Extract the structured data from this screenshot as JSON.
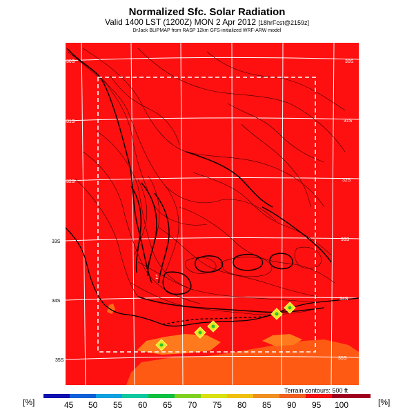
{
  "header": {
    "title": "Normalized Sfc. Solar Radiation",
    "valid_main": "Valid 1400 LST (1200Z) MON 2 Apr 2012",
    "valid_fcst": "[18hrFcst@2159z]",
    "subtitle": "DrJack BLIPMAP from RASP 12km GFS-initialized WRF-ARW model"
  },
  "map": {
    "lon_top": [
      "18E",
      "19E",
      "20E",
      "21E",
      "22E",
      "23E"
    ],
    "lon_bottom": [
      "18E",
      "19E",
      "20E",
      "21E"
    ],
    "lat_left": [
      "30S",
      "31S",
      "32S",
      "33S",
      "34S",
      "35S"
    ],
    "lat_right": [
      "30S",
      "31S",
      "32S",
      "33S",
      "34S",
      "35S"
    ],
    "spot_label": "1",
    "background_color": "#ff1010",
    "contour_color": "#3a0000"
  },
  "colorbar": {
    "unit_left": "[%]",
    "unit_right": "[%]",
    "ticks": [
      "45",
      "50",
      "55",
      "60",
      "65",
      "70",
      "75",
      "80",
      "85",
      "90",
      "95",
      "100"
    ],
    "colors": [
      "#1010b0",
      "#1060d8",
      "#10a0e0",
      "#10c8a0",
      "#10c040",
      "#80d020",
      "#d8e010",
      "#f0c010",
      "#f09020",
      "#f06020",
      "#f01010",
      "#a00020"
    ],
    "terrain_note": "Terrain contours: 500 ft"
  }
}
